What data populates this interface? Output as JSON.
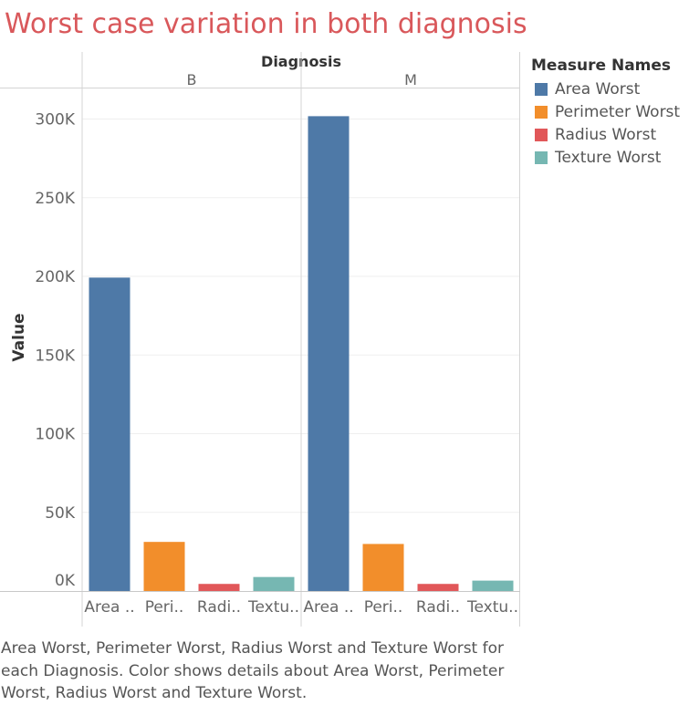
{
  "title": "Worst case variation in both diagnosis",
  "caption": "Area Worst, Perimeter Worst, Radius Worst and Texture Worst for each Diagnosis.  Color shows details about Area Worst, Perimeter Worst, Radius Worst and Texture Worst.",
  "chart_data": {
    "type": "bar",
    "facet_label": "Diagnosis",
    "facets": [
      "B",
      "M"
    ],
    "categories": [
      "Area Worst",
      "Perimeter Worst",
      "Radius Worst",
      "Texture Worst"
    ],
    "category_tick_labels": [
      "Area ..",
      "Peri..",
      "Radi..",
      "Textu.."
    ],
    "series": [
      {
        "facet": "B",
        "values": [
          199200,
          31200,
          4500,
          8900
        ]
      },
      {
        "facet": "M",
        "values": [
          301800,
          29900,
          4500,
          6600
        ]
      }
    ],
    "ylabel": "Value",
    "ylim": [
      0,
      320000
    ],
    "yticks": [
      0,
      50000,
      100000,
      150000,
      200000,
      250000,
      300000
    ],
    "ytick_labels": [
      "0K",
      "50K",
      "100K",
      "150K",
      "200K",
      "250K",
      "300K"
    ],
    "grid": true,
    "legend": {
      "title": "Measure Names",
      "position": "right",
      "items": [
        {
          "label": "Area Worst",
          "color": "#4e79a7"
        },
        {
          "label": "Perimeter Worst",
          "color": "#f28e2b"
        },
        {
          "label": "Radius Worst",
          "color": "#e15759"
        },
        {
          "label": "Texture Worst",
          "color": "#76b7b2"
        }
      ]
    }
  }
}
